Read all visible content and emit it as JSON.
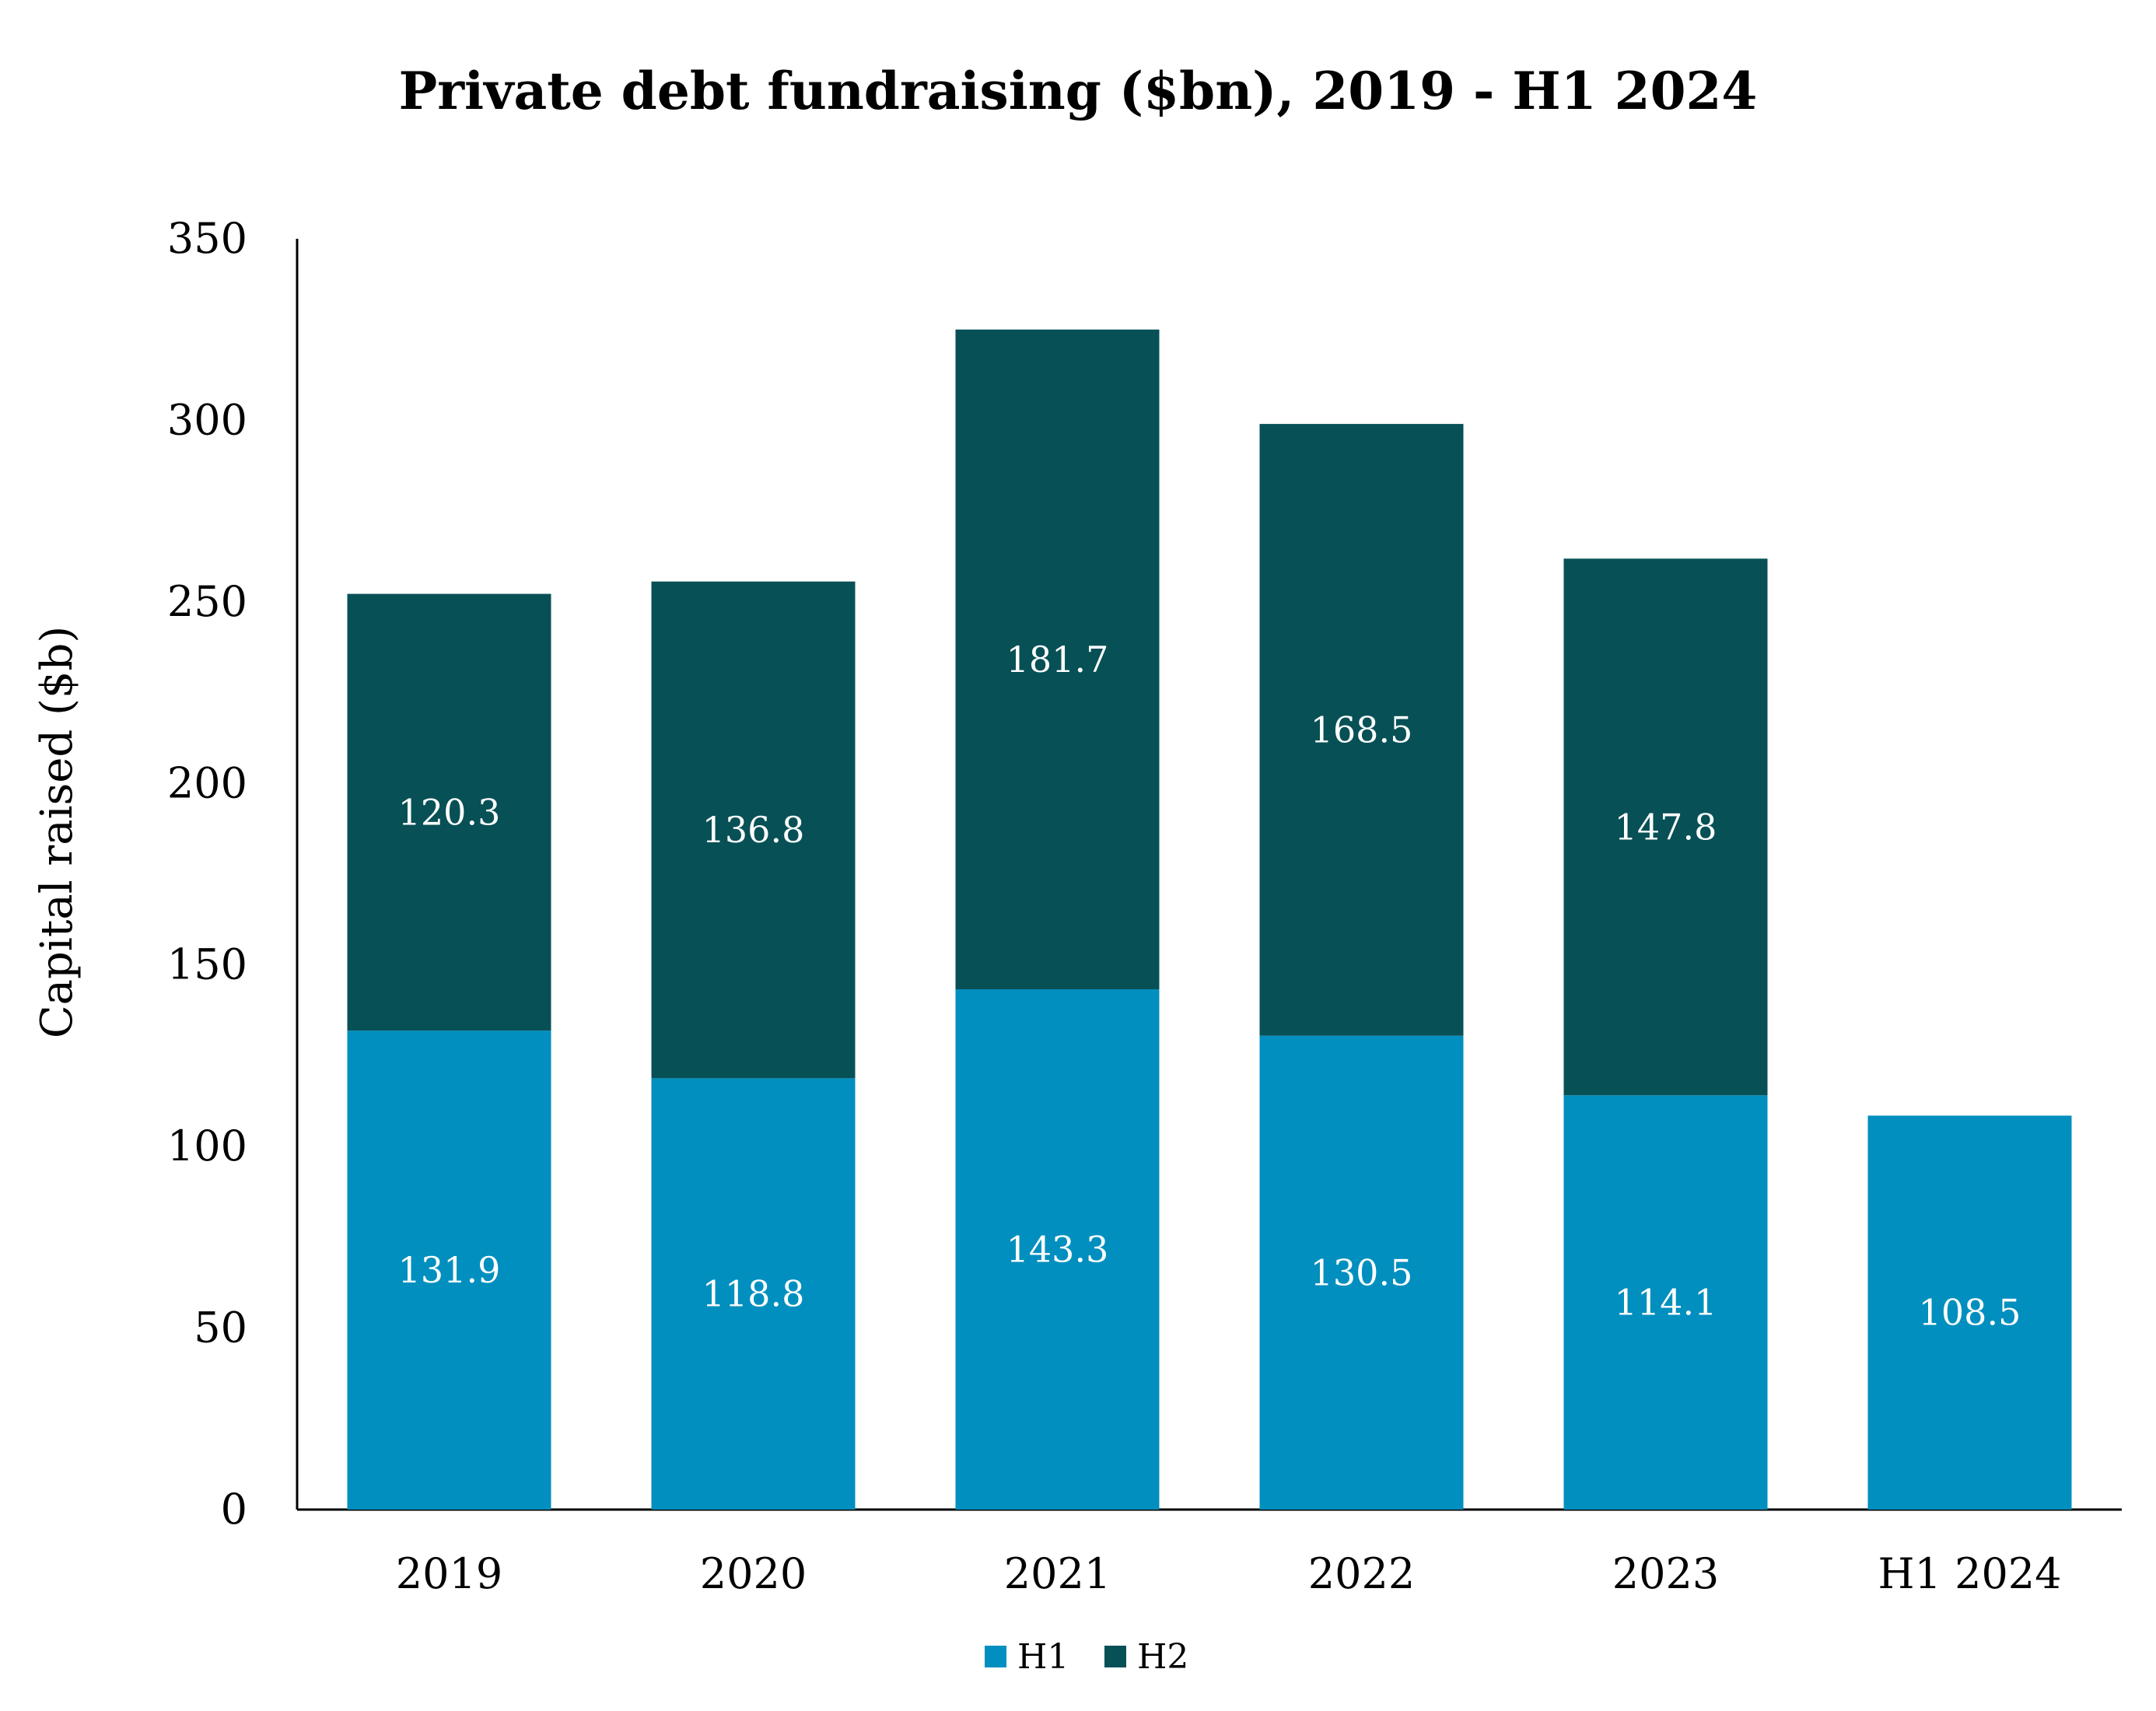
{
  "chart_data": {
    "type": "bar",
    "stacked": true,
    "title": "Private debt fundraising ($bn), 2019 - H1 2024",
    "xlabel": "",
    "ylabel": "Capital raised ($b)",
    "ylim": [
      0,
      350
    ],
    "yticks": [
      0,
      50,
      100,
      150,
      200,
      250,
      300,
      350
    ],
    "categories": [
      "2019",
      "2020",
      "2021",
      "2022",
      "2023",
      "H1 2024"
    ],
    "series": [
      {
        "name": "H1",
        "color": "#008FBE",
        "values": [
          131.9,
          118.8,
          143.3,
          130.5,
          114.1,
          108.5
        ],
        "labels": [
          "131.9",
          "118.8",
          "143.3",
          "130.5",
          "114.1",
          "108.5"
        ]
      },
      {
        "name": "H2",
        "color": "#075056",
        "values": [
          120.3,
          136.8,
          181.7,
          168.5,
          147.8,
          null
        ],
        "labels": [
          "120.3",
          "136.8",
          "181.7",
          "168.5",
          "147.8",
          null
        ]
      }
    ],
    "grid": false,
    "legend_position": "bottom-center"
  }
}
